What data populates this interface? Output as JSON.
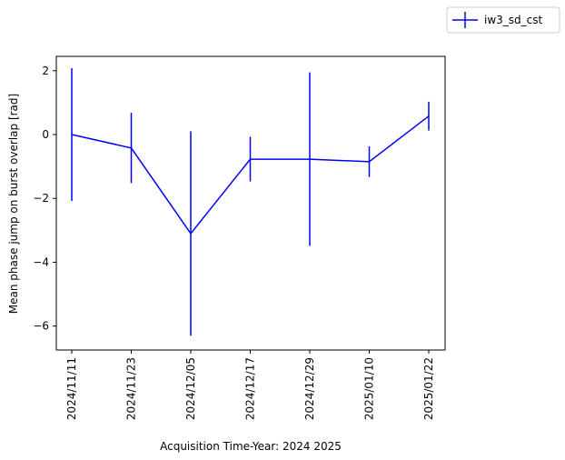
{
  "chart_data": {
    "type": "line",
    "title": "",
    "xlabel": "Acquisition Time-Year: 2024 2025",
    "ylabel": "Mean phase jump on burst overlap [rad]",
    "x": [
      "2024/11/11",
      "2024/11/23",
      "2024/12/05",
      "2024/12/17",
      "2024/12/29",
      "2025/01/10",
      "2025/01/22"
    ],
    "ylim": [
      -6.75,
      2.45
    ],
    "yticks": [
      2,
      0,
      -2,
      -4,
      -6
    ],
    "grid": false,
    "legend_placement": "upper-right outside",
    "series": [
      {
        "name": "iw3_sd_cst",
        "color": "#0000ff",
        "values": [
          0.0,
          -0.42,
          -3.1,
          -0.77,
          -0.77,
          -0.85,
          0.58
        ],
        "errors": [
          2.08,
          1.1,
          3.2,
          0.7,
          2.72,
          0.48,
          0.45
        ]
      }
    ]
  }
}
